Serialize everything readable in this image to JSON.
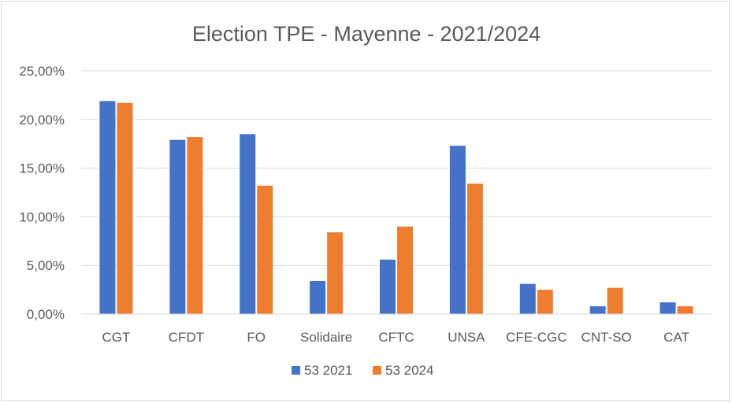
{
  "chart_data": {
    "type": "bar",
    "title": "Election TPE - Mayenne - 2021/2024",
    "xlabel": "",
    "ylabel": "",
    "categories": [
      "CGT",
      "CFDT",
      "FO",
      "Solidaire",
      "CFTC",
      "UNSA",
      "CFE-CGC",
      "CNT-SO",
      "CAT"
    ],
    "series": [
      {
        "name": "53 2021",
        "color": "#4472c4",
        "values": [
          21.9,
          17.9,
          18.5,
          3.4,
          5.6,
          17.3,
          3.1,
          0.8,
          1.2
        ]
      },
      {
        "name": "53 2024",
        "color": "#ed7d31",
        "values": [
          21.7,
          18.2,
          13.2,
          8.4,
          9.0,
          13.4,
          2.5,
          2.7,
          0.8
        ]
      }
    ],
    "ylim": [
      0,
      25
    ],
    "yticks": [
      "0,00%",
      "5,00%",
      "10,00%",
      "15,00%",
      "20,00%",
      "25,00%"
    ],
    "grid": true,
    "legend_position": "bottom"
  }
}
